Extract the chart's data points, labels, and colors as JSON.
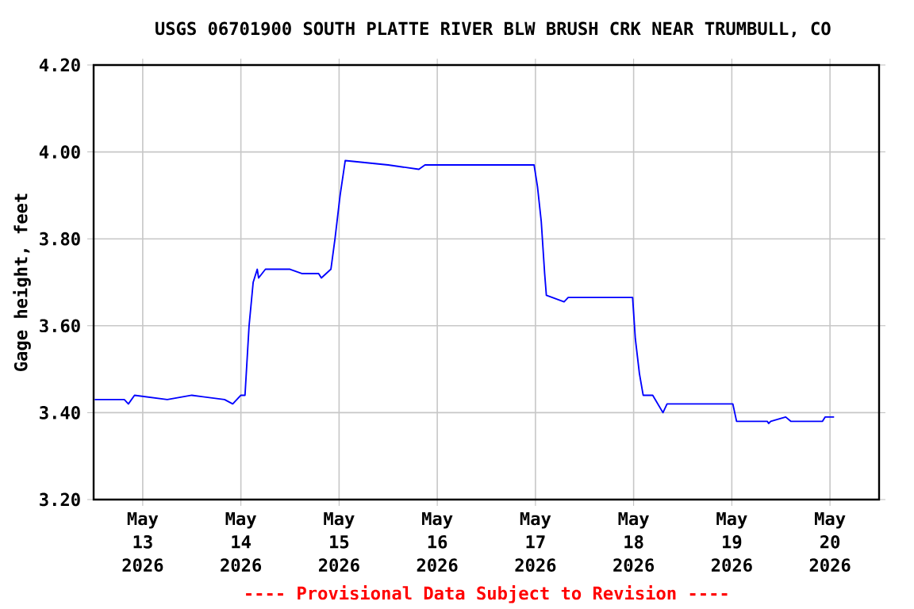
{
  "chart_data": {
    "type": "line",
    "title": "USGS 06701900 SOUTH PLATTE RIVER BLW BRUSH CRK NEAR TRUMBULL, CO",
    "ylabel": "Gage height, feet",
    "annotations": [
      "---- Provisional Data Subject to Revision ----"
    ],
    "x": [
      "2026-05-12T12:15",
      "2026-05-12T19:30",
      "2026-05-12T20:30",
      "2026-05-12T22:00",
      "2026-05-13T06:00",
      "2026-05-13T12:00",
      "2026-05-13T20:00",
      "2026-05-13T22:00",
      "2026-05-14T00:00",
      "2026-05-14T01:00",
      "2026-05-14T02:00",
      "2026-05-14T03:00",
      "2026-05-14T04:00",
      "2026-05-14T04:20",
      "2026-05-14T06:00",
      "2026-05-14T12:00",
      "2026-05-14T15:00",
      "2026-05-14T19:00",
      "2026-05-14T19:40",
      "2026-05-14T22:00",
      "2026-05-14T23:00",
      "2026-05-15T00:15",
      "2026-05-15T01:30",
      "2026-05-15T12:00",
      "2026-05-15T19:30",
      "2026-05-15T21:00",
      "2026-05-16T12:00",
      "2026-05-16T23:40",
      "2026-05-17T00:30",
      "2026-05-17T01:25",
      "2026-05-17T02:15",
      "2026-05-17T02:40",
      "2026-05-17T07:00",
      "2026-05-17T08:00",
      "2026-05-17T23:45",
      "2026-05-18T00:25",
      "2026-05-18T01:25",
      "2026-05-18T02:20",
      "2026-05-18T04:40",
      "2026-05-18T07:10",
      "2026-05-18T08:10",
      "2026-05-19T00:15",
      "2026-05-19T01:10",
      "2026-05-19T08:40",
      "2026-05-19T09:00",
      "2026-05-19T09:30",
      "2026-05-19T13:10",
      "2026-05-19T14:25",
      "2026-05-19T22:10",
      "2026-05-19T22:50",
      "2026-05-20T01:00"
    ],
    "values": [
      3.43,
      3.43,
      3.42,
      3.44,
      3.43,
      3.44,
      3.43,
      3.42,
      3.44,
      3.44,
      3.6,
      3.7,
      3.73,
      3.71,
      3.73,
      3.73,
      3.72,
      3.72,
      3.71,
      3.73,
      3.8,
      3.9,
      3.98,
      3.97,
      3.96,
      3.97,
      3.97,
      3.97,
      3.92,
      3.84,
      3.72,
      3.67,
      3.655,
      3.665,
      3.665,
      3.57,
      3.49,
      3.44,
      3.44,
      3.4,
      3.42,
      3.42,
      3.38,
      3.38,
      3.375,
      3.38,
      3.39,
      3.38,
      3.38,
      3.39,
      3.39
    ],
    "color": "#0000ff",
    "xlim": [
      "2026-05-12T12:00",
      "2026-05-20T12:00"
    ],
    "xticks": [
      {
        "value": "2026-05-13",
        "label": "May 13 2026"
      },
      {
        "value": "2026-05-14",
        "label": "May 14 2026"
      },
      {
        "value": "2026-05-15",
        "label": "May 15 2026"
      },
      {
        "value": "2026-05-16",
        "label": "May 16 2026"
      },
      {
        "value": "2026-05-17",
        "label": "May 17 2026"
      },
      {
        "value": "2026-05-18",
        "label": "May 18 2026"
      },
      {
        "value": "2026-05-19",
        "label": "May 19 2026"
      },
      {
        "value": "2026-05-20",
        "label": "May 20 2026"
      }
    ],
    "ylim": [
      3.2,
      4.2
    ],
    "yticks": [
      {
        "value": 3.2,
        "label": "3.20"
      },
      {
        "value": 3.4,
        "label": "3.40"
      },
      {
        "value": 3.6,
        "label": "3.60"
      },
      {
        "value": 3.8,
        "label": "3.80"
      },
      {
        "value": 4.0,
        "label": "4.00"
      },
      {
        "value": 4.2,
        "label": "4.20"
      }
    ],
    "grid": true
  }
}
